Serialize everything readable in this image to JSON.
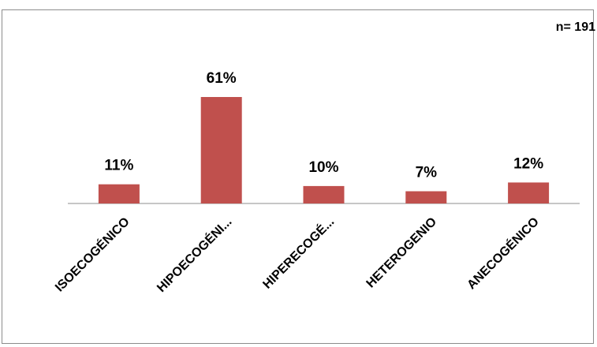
{
  "n_label": "n= 191",
  "chart_data": {
    "type": "bar",
    "categories": [
      "ISOECOGÉNICO",
      "HIPOECOGÉNI...",
      "HIPERECOGÉ...",
      "HETEROGENIO",
      "ANECOGÉNICO"
    ],
    "values": [
      11,
      61,
      10,
      7,
      12
    ],
    "value_labels": [
      "11%",
      "61%",
      "10%",
      "7%",
      "12%"
    ],
    "ylim": [
      0,
      100
    ],
    "bar_color": "#c0504d",
    "grid": false,
    "legend": "none"
  }
}
